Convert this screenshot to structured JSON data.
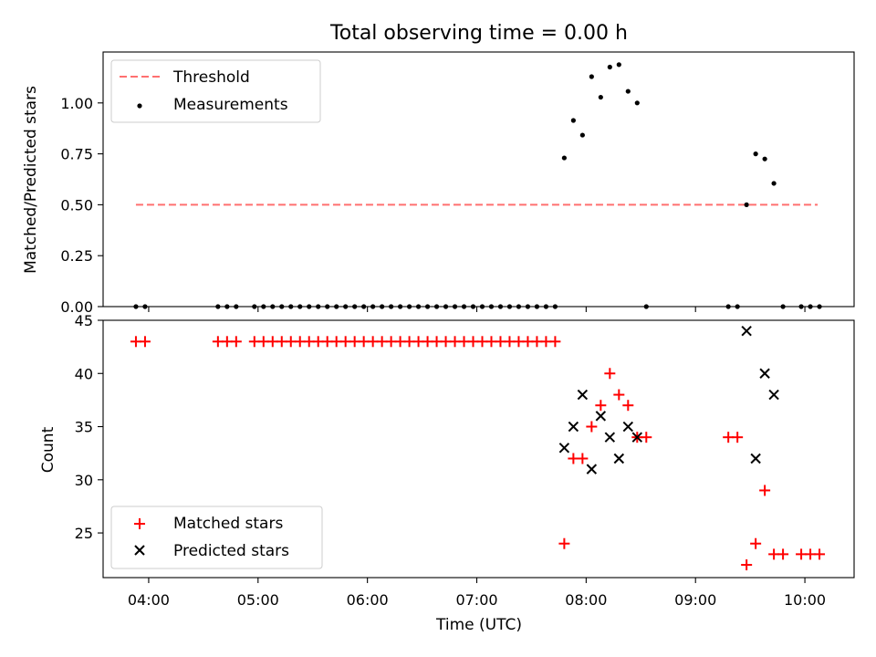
{
  "title": "Total observing time = 0.00 h",
  "colors": {
    "threshold": "#ff7070",
    "measurements": "#000000",
    "matched": "#ff0000",
    "predicted": "#000000"
  },
  "chart_data": [
    {
      "type": "scatter",
      "panel": "top",
      "ylabel": "Matched/Predicted stars",
      "xlabel": "",
      "ylim": [
        0,
        1.25
      ],
      "yticks": [
        0.0,
        0.25,
        0.5,
        0.75,
        1.0
      ],
      "ytick_labels": [
        "0.00",
        "0.25",
        "0.50",
        "0.75",
        "1.00"
      ],
      "legend": {
        "placement": "top-left",
        "entries": [
          "Threshold",
          "Measurements"
        ]
      },
      "threshold": {
        "name": "Threshold",
        "value": 0.5,
        "x_range": [
          "03:53",
          "10:07"
        ]
      },
      "series": [
        {
          "name": "Measurements",
          "points": [
            [
              "03:53",
              0
            ],
            [
              "03:58",
              0
            ],
            [
              "04:38",
              0
            ],
            [
              "04:43",
              0
            ],
            [
              "04:48",
              0
            ],
            [
              "04:58",
              0
            ],
            [
              "05:03",
              0
            ],
            [
              "05:08",
              0
            ],
            [
              "05:13",
              0
            ],
            [
              "05:18",
              0
            ],
            [
              "05:23",
              0
            ],
            [
              "05:28",
              0
            ],
            [
              "05:33",
              0
            ],
            [
              "05:38",
              0
            ],
            [
              "05:43",
              0
            ],
            [
              "05:48",
              0
            ],
            [
              "05:53",
              0
            ],
            [
              "05:58",
              0
            ],
            [
              "06:03",
              0
            ],
            [
              "06:08",
              0
            ],
            [
              "06:13",
              0
            ],
            [
              "06:18",
              0
            ],
            [
              "06:23",
              0
            ],
            [
              "06:28",
              0
            ],
            [
              "06:33",
              0
            ],
            [
              "06:38",
              0
            ],
            [
              "06:43",
              0
            ],
            [
              "06:48",
              0
            ],
            [
              "06:53",
              0
            ],
            [
              "06:58",
              0
            ],
            [
              "07:03",
              0
            ],
            [
              "07:08",
              0
            ],
            [
              "07:13",
              0
            ],
            [
              "07:18",
              0
            ],
            [
              "07:23",
              0
            ],
            [
              "07:28",
              0
            ],
            [
              "07:33",
              0
            ],
            [
              "07:38",
              0
            ],
            [
              "07:43",
              0
            ],
            [
              "07:48",
              0.73
            ],
            [
              "07:53",
              0.914
            ],
            [
              "07:58",
              0.842
            ],
            [
              "08:03",
              1.129
            ],
            [
              "08:08",
              1.028
            ],
            [
              "08:13",
              1.176
            ],
            [
              "08:18",
              1.188
            ],
            [
              "08:23",
              1.057
            ],
            [
              "08:28",
              1.0
            ],
            [
              "08:33",
              0
            ],
            [
              "09:18",
              0
            ],
            [
              "09:23",
              0
            ],
            [
              "09:28",
              0.5
            ],
            [
              "09:33",
              0.75
            ],
            [
              "09:38",
              0.725
            ],
            [
              "09:43",
              0.605
            ],
            [
              "09:48",
              0
            ],
            [
              "09:58",
              0
            ],
            [
              "10:03",
              0
            ],
            [
              "10:08",
              0
            ]
          ]
        }
      ]
    },
    {
      "type": "scatter",
      "panel": "bottom",
      "xlabel": "Time (UTC)",
      "ylabel": "Count",
      "ylim": [
        20.8,
        45
      ],
      "yticks": [
        25,
        30,
        35,
        40,
        45
      ],
      "xlim": [
        "03:35",
        "10:27"
      ],
      "xticks": [
        "04:00",
        "05:00",
        "06:00",
        "07:00",
        "08:00",
        "09:00",
        "10:00"
      ],
      "legend": {
        "placement": "bottom-left",
        "entries": [
          "Matched stars",
          "Predicted stars"
        ]
      },
      "series": [
        {
          "name": "Matched stars",
          "marker": "plus",
          "points": [
            [
              "03:53",
              43
            ],
            [
              "03:58",
              43
            ],
            [
              "04:38",
              43
            ],
            [
              "04:43",
              43
            ],
            [
              "04:48",
              43
            ],
            [
              "04:58",
              43
            ],
            [
              "05:03",
              43
            ],
            [
              "05:08",
              43
            ],
            [
              "05:13",
              43
            ],
            [
              "05:18",
              43
            ],
            [
              "05:23",
              43
            ],
            [
              "05:28",
              43
            ],
            [
              "05:33",
              43
            ],
            [
              "05:38",
              43
            ],
            [
              "05:43",
              43
            ],
            [
              "05:48",
              43
            ],
            [
              "05:53",
              43
            ],
            [
              "05:58",
              43
            ],
            [
              "06:03",
              43
            ],
            [
              "06:08",
              43
            ],
            [
              "06:13",
              43
            ],
            [
              "06:18",
              43
            ],
            [
              "06:23",
              43
            ],
            [
              "06:28",
              43
            ],
            [
              "06:33",
              43
            ],
            [
              "06:38",
              43
            ],
            [
              "06:43",
              43
            ],
            [
              "06:48",
              43
            ],
            [
              "06:53",
              43
            ],
            [
              "06:58",
              43
            ],
            [
              "07:03",
              43
            ],
            [
              "07:08",
              43
            ],
            [
              "07:13",
              43
            ],
            [
              "07:18",
              43
            ],
            [
              "07:23",
              43
            ],
            [
              "07:28",
              43
            ],
            [
              "07:33",
              43
            ],
            [
              "07:38",
              43
            ],
            [
              "07:43",
              43
            ],
            [
              "07:48",
              24
            ],
            [
              "07:53",
              32
            ],
            [
              "07:58",
              32
            ],
            [
              "08:03",
              35
            ],
            [
              "08:08",
              37
            ],
            [
              "08:13",
              40
            ],
            [
              "08:18",
              38
            ],
            [
              "08:23",
              37
            ],
            [
              "08:28",
              34
            ],
            [
              "08:33",
              34
            ],
            [
              "09:18",
              34
            ],
            [
              "09:23",
              34
            ],
            [
              "09:28",
              22
            ],
            [
              "09:33",
              24
            ],
            [
              "09:38",
              29
            ],
            [
              "09:43",
              23
            ],
            [
              "09:48",
              23
            ],
            [
              "09:58",
              23
            ],
            [
              "10:03",
              23
            ],
            [
              "10:08",
              23
            ]
          ]
        },
        {
          "name": "Predicted stars",
          "marker": "x",
          "points": [
            [
              "07:48",
              33
            ],
            [
              "07:53",
              35
            ],
            [
              "07:58",
              38
            ],
            [
              "08:03",
              31
            ],
            [
              "08:08",
              36
            ],
            [
              "08:13",
              34
            ],
            [
              "08:18",
              32
            ],
            [
              "08:23",
              35
            ],
            [
              "08:28",
              34
            ],
            [
              "09:28",
              44
            ],
            [
              "09:33",
              32
            ],
            [
              "09:38",
              40
            ],
            [
              "09:43",
              38
            ]
          ]
        }
      ]
    }
  ]
}
